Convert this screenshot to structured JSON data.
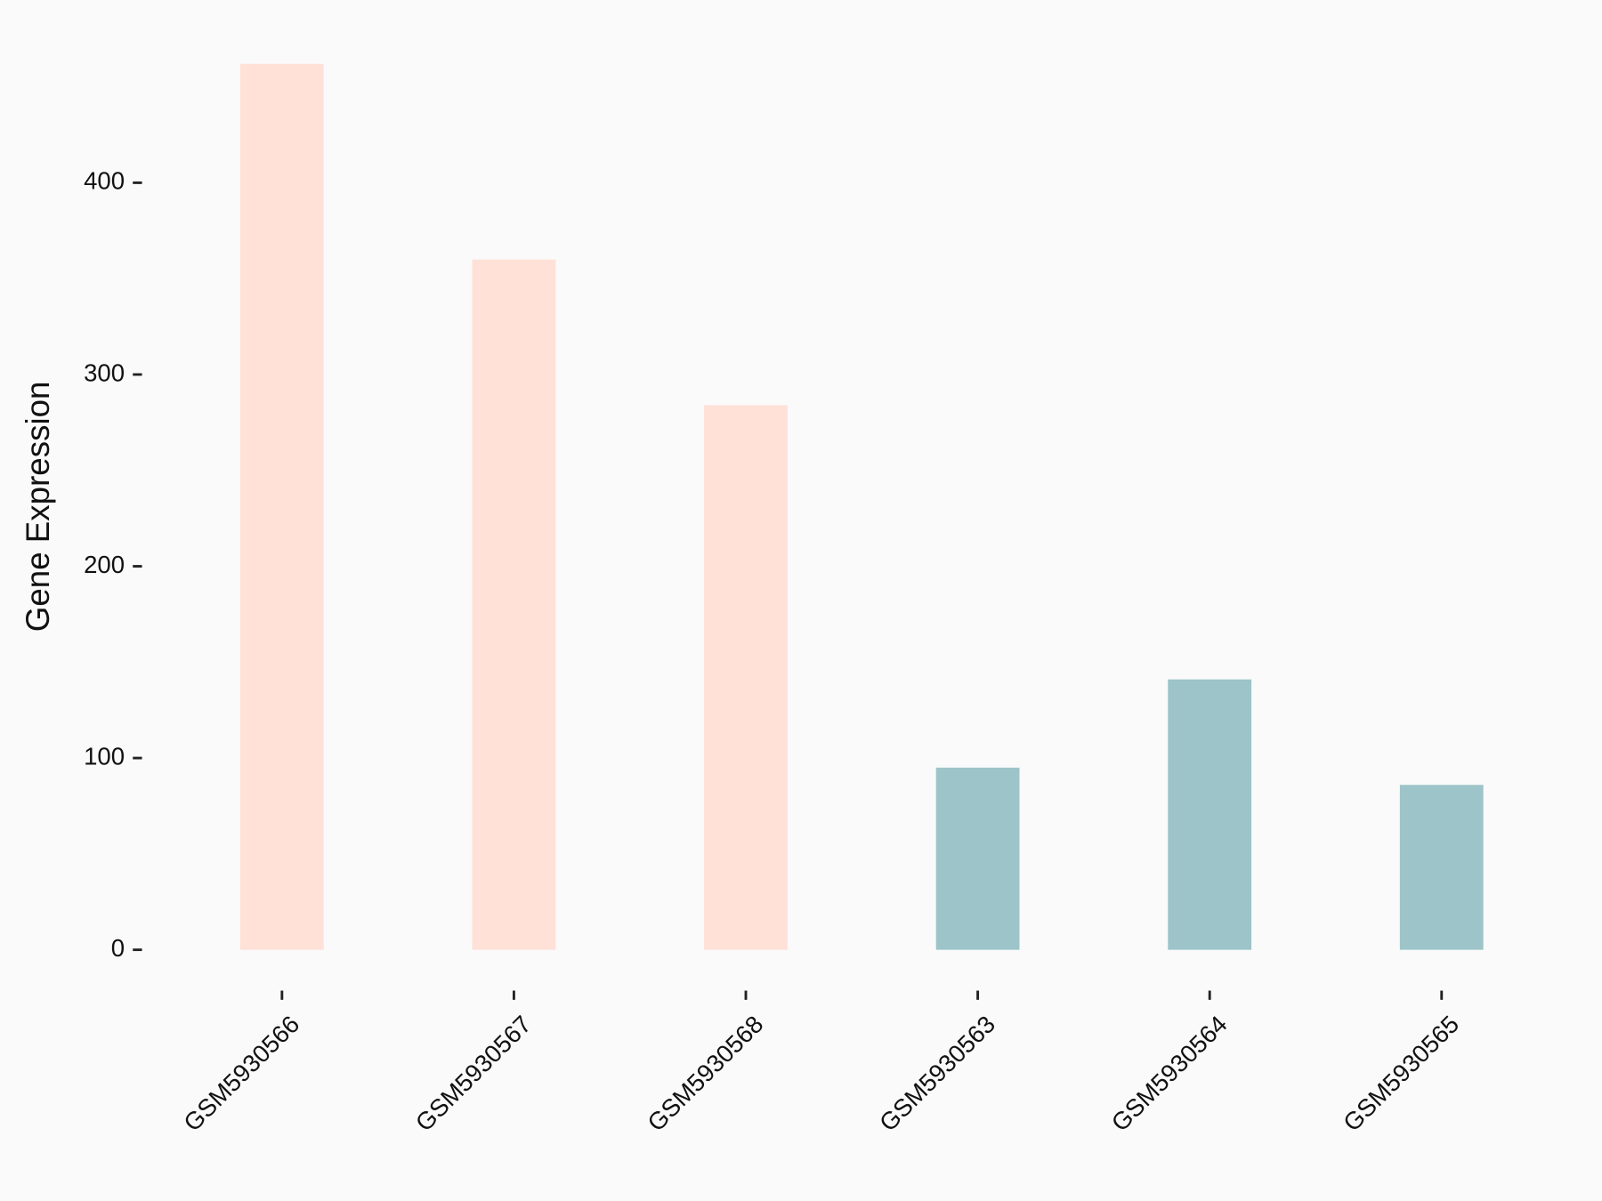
{
  "chart_data": {
    "type": "bar",
    "y_label": "Gene Expression",
    "categories": [
      "GSM5930566",
      "GSM5930567",
      "GSM5930568",
      "GSM5930563",
      "GSM5930564",
      "GSM5930565"
    ],
    "values": [
      462,
      360,
      284,
      95,
      141,
      86
    ],
    "colors": [
      "#FFE1D8",
      "#FFE1D8",
      "#FFE1D8",
      "#9DC4C8",
      "#9DC4C8",
      "#9DC4C8"
    ],
    "ylim": [
      -23.1,
      485.4
    ],
    "yticks": [
      0,
      100,
      200,
      300,
      400
    ]
  }
}
